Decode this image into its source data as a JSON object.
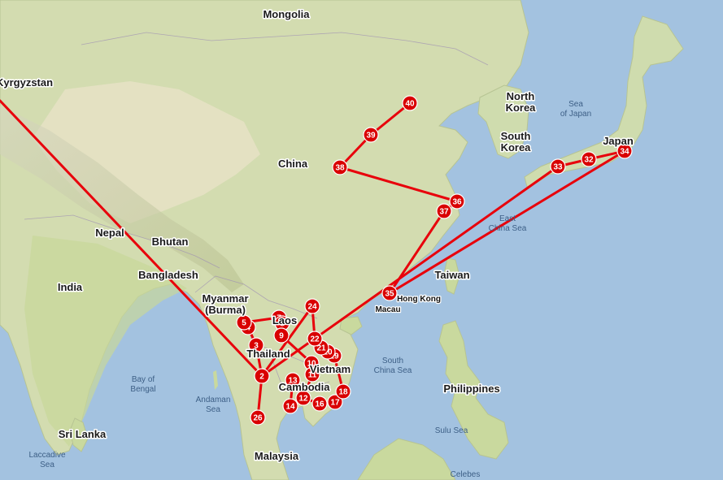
{
  "map": {
    "countries": [
      "Mongolia",
      "North Korea",
      "South Korea",
      "Japan",
      "China",
      "Nepal",
      "Bhutan",
      "Bangladesh",
      "India",
      "Myanmar (Burma)",
      "Thailand",
      "Laos",
      "Vietnam",
      "Cambodia",
      "Taiwan",
      "Philippines",
      "Sri Lanka",
      "Malaysia",
      "Kyrgyzstan"
    ],
    "cities": [
      "Hong Kong",
      "Macau"
    ],
    "seas": [
      "Sea of Japan",
      "East China Sea",
      "South China Sea",
      "Bay of Bengal",
      "Andaman Sea",
      "Laccadive Sea",
      "Sulu Sea",
      "Celebes"
    ],
    "markers": [
      {
        "id": "2",
        "label": "2"
      },
      {
        "id": "3",
        "label": "3"
      },
      {
        "id": "4",
        "label": "4"
      },
      {
        "id": "5",
        "label": "5"
      },
      {
        "id": "7",
        "label": "7"
      },
      {
        "id": "8",
        "label": "8"
      },
      {
        "id": "9",
        "label": "9"
      },
      {
        "id": "10",
        "label": "10"
      },
      {
        "id": "11",
        "label": "11"
      },
      {
        "id": "12",
        "label": "12"
      },
      {
        "id": "13",
        "label": "13"
      },
      {
        "id": "14",
        "label": "14"
      },
      {
        "id": "16",
        "label": "16"
      },
      {
        "id": "17",
        "label": "17"
      },
      {
        "id": "18",
        "label": "18"
      },
      {
        "id": "19",
        "label": "19"
      },
      {
        "id": "20",
        "label": "20"
      },
      {
        "id": "21",
        "label": "21"
      },
      {
        "id": "22",
        "label": "22"
      },
      {
        "id": "24",
        "label": "24"
      },
      {
        "id": "26",
        "label": "26"
      },
      {
        "id": "32",
        "label": "32"
      },
      {
        "id": "33",
        "label": "33"
      },
      {
        "id": "34",
        "label": "34"
      },
      {
        "id": "35",
        "label": "35"
      },
      {
        "id": "36",
        "label": "36"
      },
      {
        "id": "37",
        "label": "37"
      },
      {
        "id": "38",
        "label": "38"
      },
      {
        "id": "39",
        "label": "39"
      },
      {
        "id": "40",
        "label": "40"
      }
    ],
    "route": [
      "entry",
      "2",
      "26",
      "2",
      "3",
      "4",
      "5",
      "7",
      "8",
      "9",
      "10",
      "11",
      "12",
      "13",
      "14",
      "12",
      "16",
      "17",
      "18",
      "19",
      "20",
      "21",
      "22",
      "24",
      "2",
      "33",
      "32",
      "34",
      "35",
      "37",
      "36",
      "38",
      "39",
      "40"
    ],
    "colors": {
      "ocean": "#a3c2e0",
      "land": "#cfdcae",
      "route": "#e8000b",
      "marker": "#d90000"
    }
  }
}
